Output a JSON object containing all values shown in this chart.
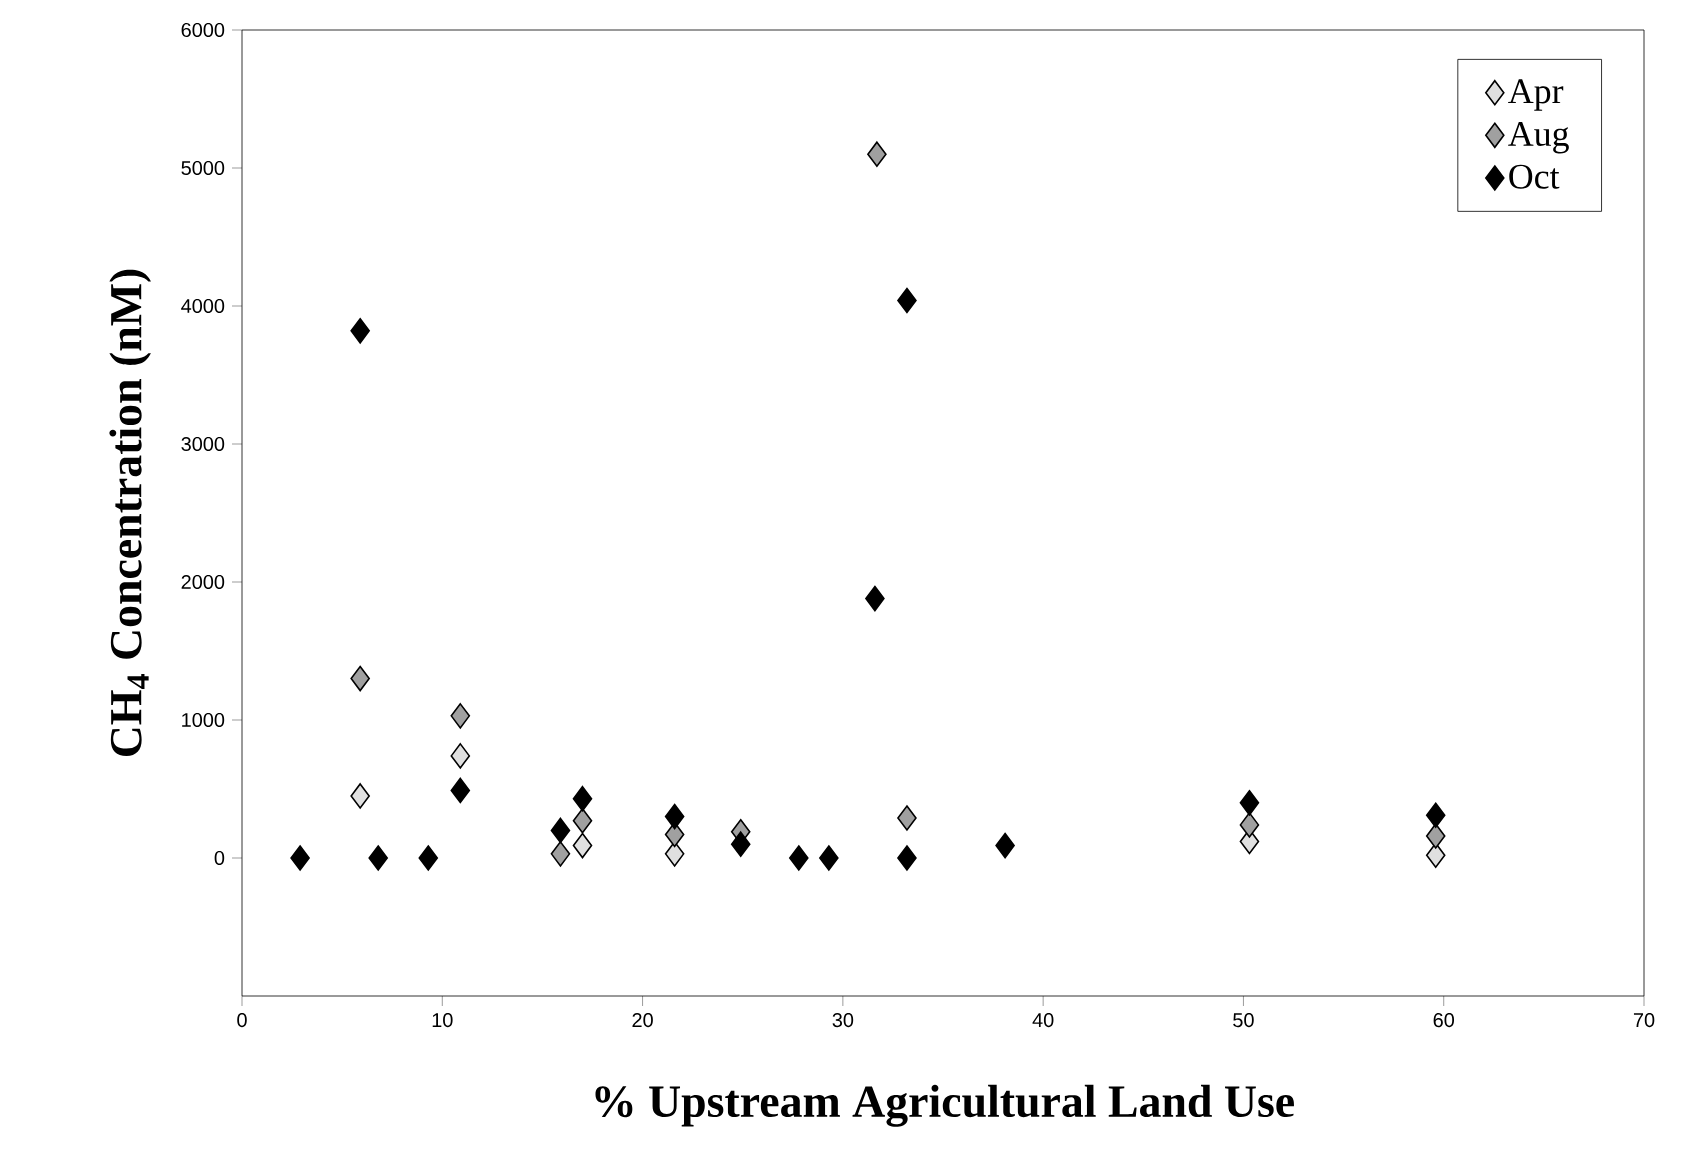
{
  "chart_data": {
    "type": "scatter",
    "xlabel": "% Upstream Agricultural Land Use",
    "ylabel": "CH$_{4}$ Concentration (nM)",
    "xlim": [
      0,
      70
    ],
    "xticks": [
      0,
      10,
      20,
      30,
      40,
      50,
      60,
      70
    ],
    "ylim": [
      -1000,
      6000
    ],
    "yticks": [
      0,
      1000,
      2000,
      3000,
      4000,
      5000,
      6000
    ],
    "marker": "diamond",
    "grid": false,
    "legend": "top right",
    "series": [
      {
        "name": "Apr",
        "color": "#e0e0e0",
        "x": [
          5.9,
          10.9,
          17.0,
          21.6,
          24.9,
          50.3,
          59.6
        ],
        "values": [
          450,
          740,
          90,
          30,
          null,
          120,
          20
        ]
      },
      {
        "name": "Aug",
        "color": "#a0a0a0",
        "x": [
          5.9,
          10.9,
          15.9,
          17.0,
          21.6,
          24.9,
          31.7,
          33.2,
          50.3,
          59.6
        ],
        "values": [
          1300,
          1030,
          30,
          270,
          170,
          190,
          5100,
          290,
          240,
          160
        ]
      },
      {
        "name": "Oct",
        "color": "#000000",
        "x": [
          2.9,
          5.9,
          6.8,
          9.3,
          10.9,
          15.9,
          17.0,
          21.6,
          24.9,
          27.8,
          29.3,
          31.6,
          33.2,
          33.2,
          38.1,
          50.3,
          59.6
        ],
        "values": [
          0,
          3820,
          0,
          0,
          490,
          200,
          430,
          300,
          100,
          0,
          0,
          1880,
          4040,
          0,
          90,
          400,
          310
        ]
      }
    ]
  }
}
